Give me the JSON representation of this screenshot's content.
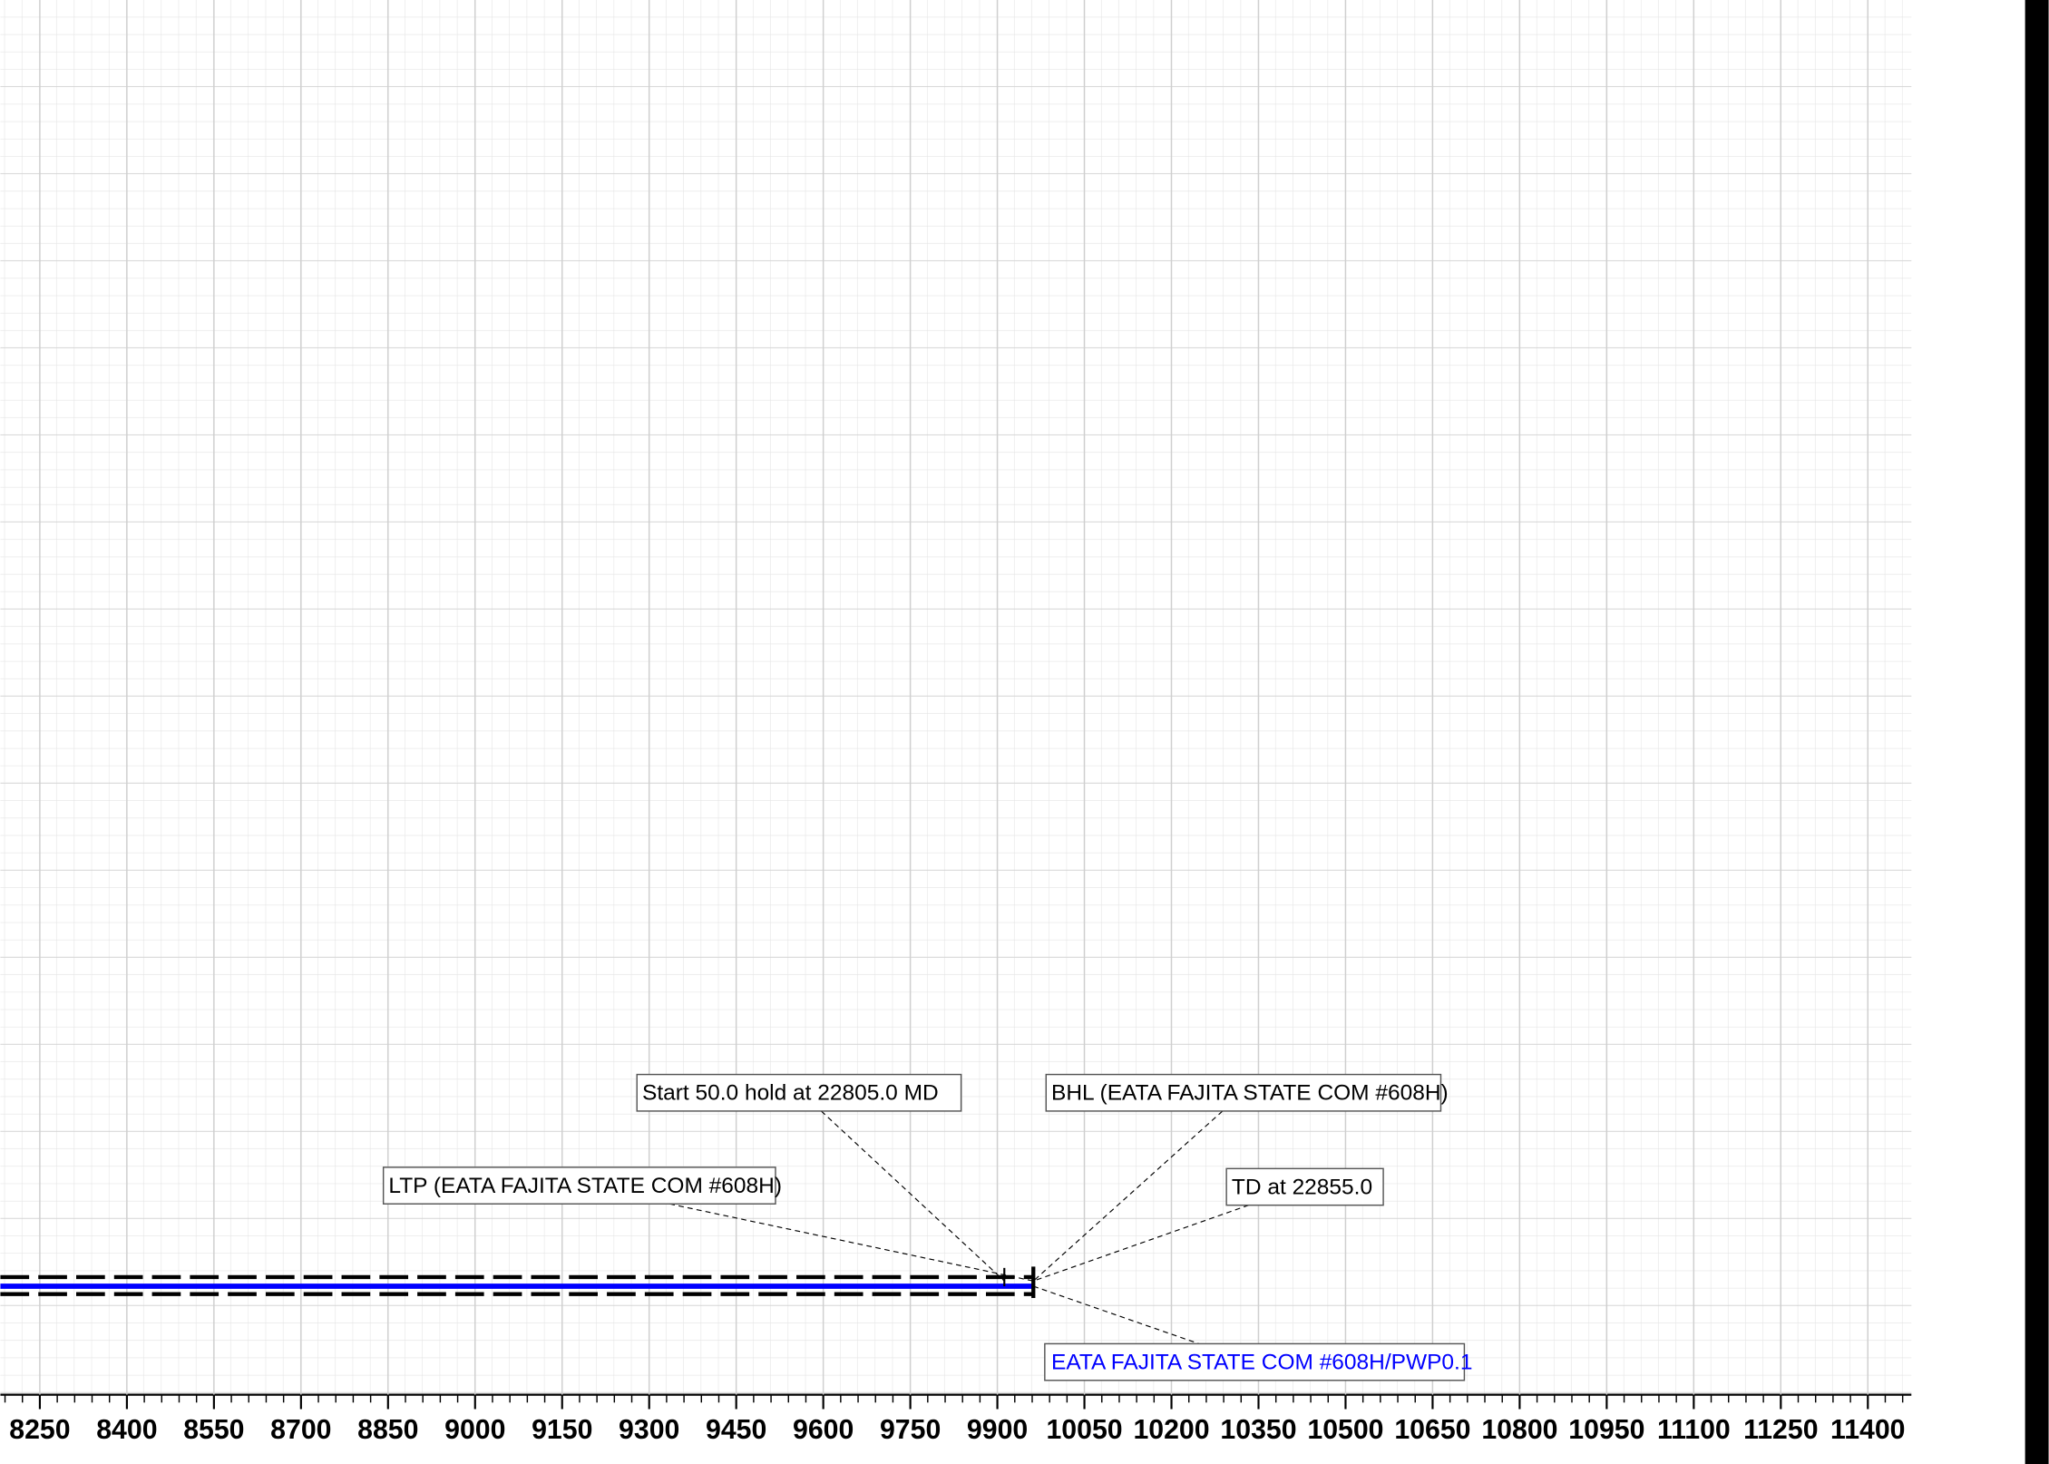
{
  "chart_data": {
    "type": "well-plan",
    "xlim": [
      8182,
      11475
    ],
    "xticks": [
      8250,
      8400,
      8550,
      8700,
      8850,
      9000,
      9150,
      9300,
      9450,
      9600,
      9750,
      9900,
      10050,
      10200,
      10350,
      10500,
      10650,
      10800,
      10950,
      11100,
      11250,
      11400
    ],
    "grid": true,
    "series": [
      {
        "name": "EATA FAJITA STATE COM #608H/PWP0.1",
        "color": "#0000ff",
        "x": [
          8182,
          9912,
          9962
        ]
      }
    ],
    "annotations": [
      {
        "text": "Start 50.0 hold at 22805.0 MD",
        "x": 9912
      },
      {
        "text": "BHL (EATA FAJITA STATE COM #608H)",
        "x": 9962
      },
      {
        "text": "LTP (EATA FAJITA STATE COM #608H)",
        "x": 9962
      },
      {
        "text": "TD at 22855.0",
        "x": 9962
      }
    ]
  }
}
